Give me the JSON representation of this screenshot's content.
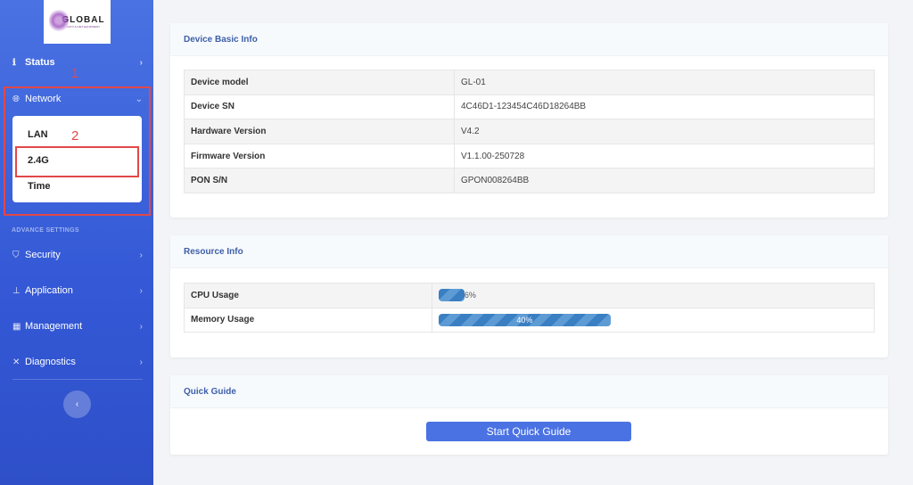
{
  "logo": {
    "text": "GLOBAL",
    "subtext": "CATV & INET EQUIPMENT"
  },
  "sidebar": {
    "status": {
      "label": "Status",
      "icon": "info-icon"
    },
    "network": {
      "label": "Network",
      "icon": "globe-icon",
      "submenu": [
        "LAN",
        "2.4G",
        "Time"
      ]
    },
    "advance_header": "ADVANCE SETTINGS",
    "items": [
      {
        "label": "Security",
        "icon": "shield-icon"
      },
      {
        "label": "Application",
        "icon": "sitemap-icon"
      },
      {
        "label": "Management",
        "icon": "toolbox-icon"
      },
      {
        "label": "Diagnostics",
        "icon": "tools-icon"
      }
    ],
    "collapse": "‹"
  },
  "annotations": {
    "one": "1",
    "two": "2"
  },
  "device": {
    "title": "Device Basic Info",
    "rows": [
      {
        "k": "Device model",
        "v": "GL-01"
      },
      {
        "k": "Device SN",
        "v": "4C46D1-123454C46D18264BB"
      },
      {
        "k": "Hardware Version",
        "v": "V4.2"
      },
      {
        "k": "Firmware Version",
        "v": "V1.1.00-250728"
      },
      {
        "k": "PON S/N",
        "v": "GPON008264BB"
      }
    ]
  },
  "resource": {
    "title": "Resource Info",
    "cpu": {
      "label": "CPU Usage",
      "value": 6,
      "text": "6%"
    },
    "memory": {
      "label": "Memory Usage",
      "value": 40,
      "text": "40%"
    }
  },
  "quick": {
    "title": "Quick Guide",
    "button": "Start Quick Guide"
  },
  "colors": {
    "accent": "#4a72e2",
    "annotation": "#e24848"
  }
}
